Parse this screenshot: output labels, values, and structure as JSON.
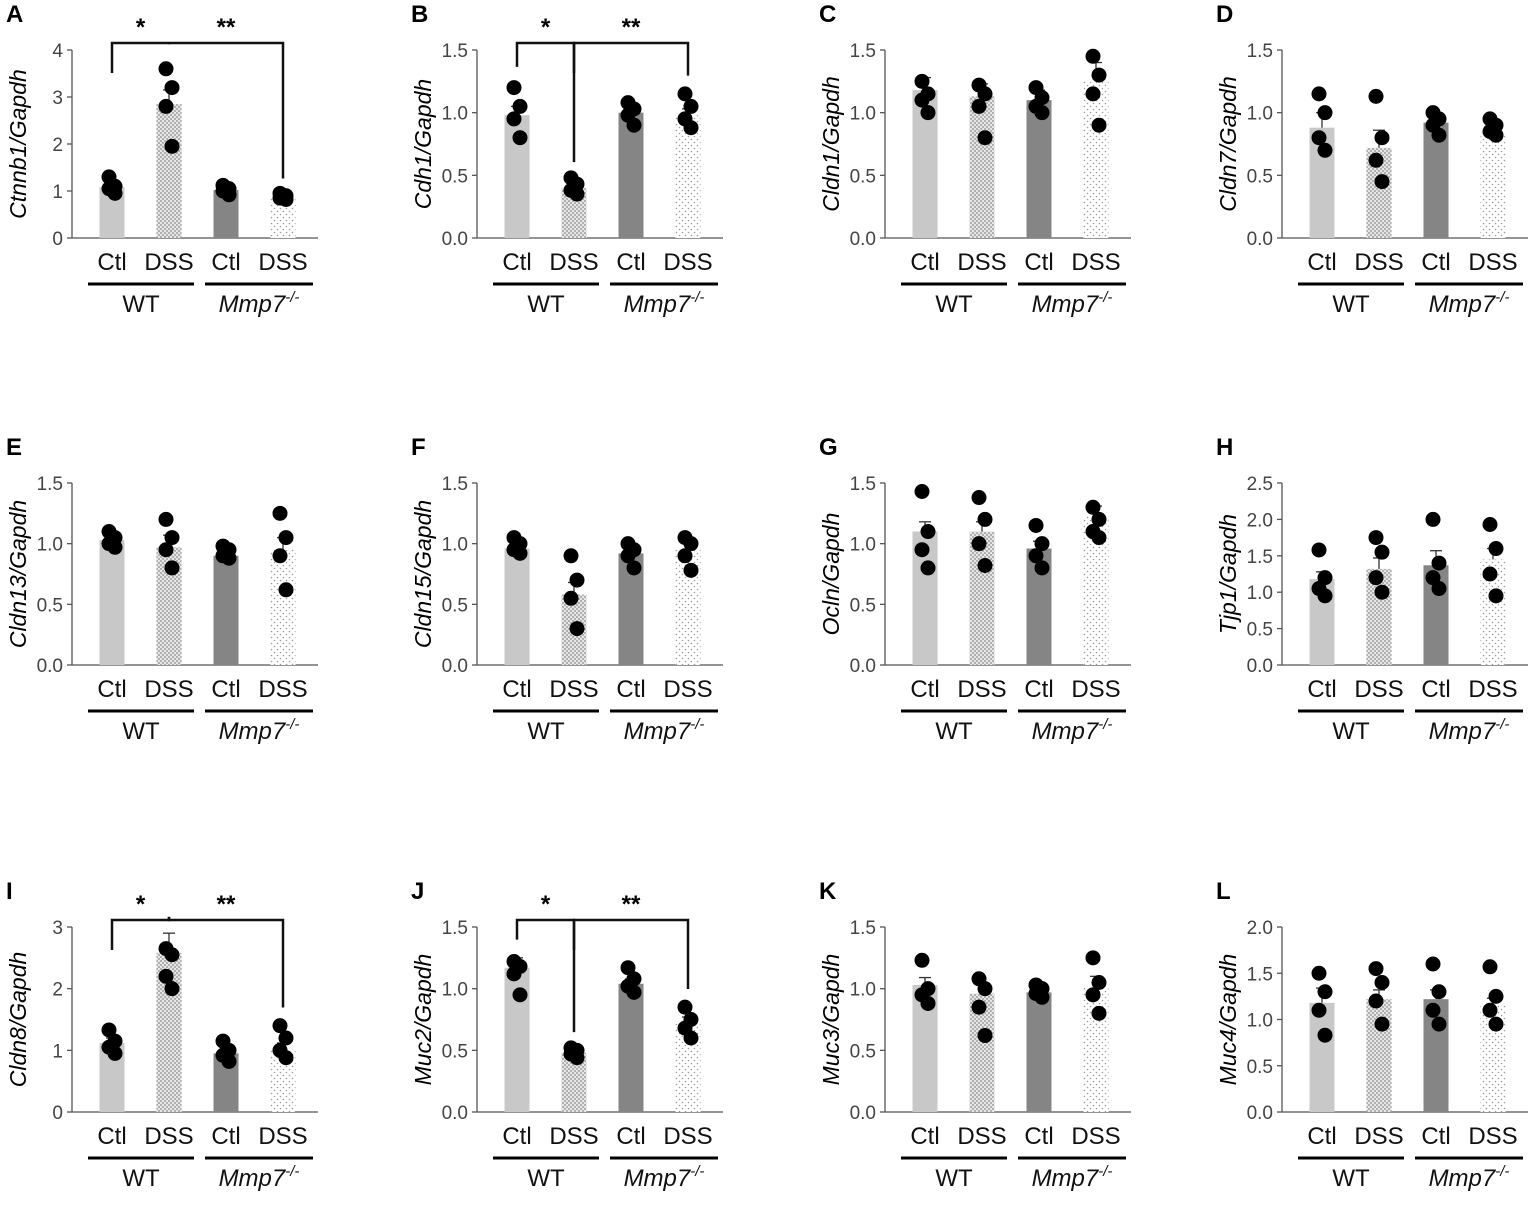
{
  "figure": {
    "category_labels": [
      "Ctl",
      "DSS",
      "Ctl",
      "DSS"
    ],
    "group_labels": [
      "WT",
      "Mmp7",
      "-/-"
    ],
    "bar_colors": [
      "#c8c8c8",
      "#a6a6a6",
      "#858585",
      "#d8d8d8"
    ]
  },
  "chart_data": [
    {
      "panel": "A",
      "type": "bar",
      "ylabel": "Ctnnb1/Gapdh",
      "ylim": [
        0,
        4
      ],
      "ticks": [
        "0",
        "1",
        "2",
        "3",
        "4"
      ],
      "values": [
        1.08,
        2.85,
        1.02,
        0.88
      ],
      "errors": [
        0.1,
        0.3,
        0.06,
        0.06
      ],
      "points": [
        [
          1.3,
          1.1,
          1.05,
          0.95
        ],
        [
          3.6,
          3.2,
          2.8,
          1.95
        ],
        [
          1.12,
          1.05,
          1.0,
          0.92
        ],
        [
          0.95,
          0.9,
          0.85,
          0.82
        ]
      ],
      "significance": [
        {
          "from": 0,
          "to": 1,
          "label": "*"
        },
        {
          "from": 1,
          "to": 3,
          "label": "**"
        }
      ]
    },
    {
      "panel": "B",
      "type": "bar",
      "ylabel": "Cdh1/Gapdh",
      "ylim": [
        0,
        1.5
      ],
      "ticks": [
        "0.0",
        "0.5",
        "1.0",
        "1.5"
      ],
      "values": [
        0.98,
        0.4,
        1.0,
        0.98
      ],
      "errors": [
        0.07,
        0.03,
        0.05,
        0.05
      ],
      "points": [
        [
          1.2,
          1.05,
          0.95,
          0.8
        ],
        [
          0.48,
          0.43,
          0.38,
          0.35
        ],
        [
          1.08,
          1.03,
          0.98,
          0.9
        ],
        [
          1.15,
          1.05,
          0.95,
          0.88
        ]
      ],
      "significance": [
        {
          "from": 0,
          "to": 1,
          "label": "*"
        },
        {
          "from": 1,
          "to": 3,
          "label": "**"
        }
      ]
    },
    {
      "panel": "C",
      "type": "bar",
      "ylabel": "Cldn1/Gapdh",
      "ylim": [
        0,
        1.5
      ],
      "ticks": [
        "0.0",
        "0.5",
        "1.0",
        "1.5"
      ],
      "values": [
        1.18,
        1.13,
        1.1,
        1.25
      ],
      "errors": [
        0.1,
        0.1,
        0.08,
        0.15
      ],
      "points": [
        [
          1.25,
          1.15,
          1.1,
          1.0
        ],
        [
          1.22,
          1.15,
          1.05,
          0.8
        ],
        [
          1.2,
          1.12,
          1.05,
          1.0
        ],
        [
          1.45,
          1.3,
          1.15,
          0.9
        ]
      ],
      "significance": []
    },
    {
      "panel": "D",
      "type": "bar",
      "ylabel": "Cldn7/Gapdh",
      "ylim": [
        0,
        1.5
      ],
      "ticks": [
        "0.0",
        "0.5",
        "1.0",
        "1.5"
      ],
      "values": [
        0.88,
        0.72,
        0.92,
        0.85
      ],
      "errors": [
        0.12,
        0.14,
        0.06,
        0.04
      ],
      "points": [
        [
          1.15,
          1.0,
          0.8,
          0.7
        ],
        [
          1.13,
          0.8,
          0.62,
          0.45
        ],
        [
          1.0,
          0.95,
          0.9,
          0.82
        ],
        [
          0.95,
          0.9,
          0.85,
          0.82
        ]
      ],
      "significance": []
    },
    {
      "panel": "E",
      "type": "bar",
      "ylabel": "Cldn13/Gapdh",
      "ylim": [
        0,
        1.5
      ],
      "ticks": [
        "0.0",
        "0.5",
        "1.0",
        "1.5"
      ],
      "values": [
        1.03,
        0.97,
        0.9,
        0.95
      ],
      "errors": [
        0.04,
        0.1,
        0.04,
        0.1
      ],
      "points": [
        [
          1.1,
          1.05,
          1.0,
          0.97
        ],
        [
          1.2,
          1.05,
          0.95,
          0.8
        ],
        [
          0.98,
          0.95,
          0.9,
          0.88
        ],
        [
          1.25,
          1.05,
          0.9,
          0.62
        ]
      ],
      "significance": []
    },
    {
      "panel": "F",
      "type": "bar",
      "ylabel": "Cldn15/Gapdh",
      "ylim": [
        0,
        1.5
      ],
      "ticks": [
        "0.0",
        "0.5",
        "1.0",
        "1.5"
      ],
      "values": [
        0.96,
        0.58,
        0.92,
        0.95
      ],
      "errors": [
        0.04,
        0.1,
        0.05,
        0.06
      ],
      "points": [
        [
          1.05,
          1.0,
          0.95,
          0.92
        ],
        [
          0.9,
          0.7,
          0.55,
          0.3
        ],
        [
          1.0,
          0.95,
          0.9,
          0.8
        ],
        [
          1.05,
          1.0,
          0.9,
          0.78
        ]
      ],
      "significance": []
    },
    {
      "panel": "G",
      "type": "bar",
      "ylabel": "Ocln/Gapdh",
      "ylim": [
        0,
        1.5
      ],
      "ticks": [
        "0.0",
        "0.5",
        "1.0",
        "1.5"
      ],
      "values": [
        1.1,
        1.1,
        0.96,
        1.23
      ],
      "errors": [
        0.08,
        0.08,
        0.06,
        0.08
      ],
      "points": [
        [
          1.43,
          1.1,
          0.95,
          0.8
        ],
        [
          1.38,
          1.2,
          1.0,
          0.82
        ],
        [
          1.15,
          1.0,
          0.9,
          0.8
        ],
        [
          1.3,
          1.2,
          1.1,
          1.05
        ]
      ],
      "significance": []
    },
    {
      "panel": "H",
      "type": "bar",
      "ylabel": "Tjp1/Gapdh",
      "ylim": [
        0,
        2.5
      ],
      "ticks": [
        "0.0",
        "0.5",
        "1.0",
        "1.5",
        "2.0",
        "2.5"
      ],
      "values": [
        1.18,
        1.32,
        1.37,
        1.45
      ],
      "errors": [
        0.1,
        0.15,
        0.2,
        0.15
      ],
      "points": [
        [
          1.58,
          1.2,
          1.05,
          0.95
        ],
        [
          1.75,
          1.55,
          1.2,
          1.0
        ],
        [
          2.0,
          1.4,
          1.2,
          1.05
        ],
        [
          1.93,
          1.6,
          1.25,
          0.95
        ]
      ],
      "significance": []
    },
    {
      "panel": "I",
      "type": "bar",
      "ylabel": "Cldn8/Gapdh",
      "ylim": [
        0,
        3
      ],
      "ticks": [
        "0",
        "1",
        "2",
        "3"
      ],
      "values": [
        1.12,
        2.58,
        0.95,
        1.02
      ],
      "errors": [
        0.08,
        0.32,
        0.08,
        0.1
      ],
      "points": [
        [
          1.33,
          1.15,
          1.05,
          0.95
        ],
        [
          2.65,
          2.55,
          2.2,
          2.0
        ],
        [
          1.15,
          1.0,
          0.92,
          0.82
        ],
        [
          1.4,
          1.2,
          1.0,
          0.88
        ]
      ],
      "significance": [
        {
          "from": 0,
          "to": 1,
          "label": "*"
        },
        {
          "from": 1,
          "to": 3,
          "label": "**"
        }
      ]
    },
    {
      "panel": "J",
      "type": "bar",
      "ylabel": "Muc2/Gapdh",
      "ylim": [
        0,
        1.5
      ],
      "ticks": [
        "0.0",
        "0.5",
        "1.0",
        "1.5"
      ],
      "values": [
        1.17,
        0.48,
        1.04,
        0.72
      ],
      "errors": [
        0.08,
        0.03,
        0.04,
        0.05
      ],
      "points": [
        [
          1.22,
          1.18,
          1.12,
          0.95
        ],
        [
          0.52,
          0.5,
          0.47,
          0.44
        ],
        [
          1.17,
          1.08,
          1.02,
          0.97
        ],
        [
          0.85,
          0.75,
          0.68,
          0.6
        ]
      ],
      "significance": [
        {
          "from": 0,
          "to": 1,
          "label": "*"
        },
        {
          "from": 1,
          "to": 3,
          "label": "**"
        }
      ]
    },
    {
      "panel": "K",
      "type": "bar",
      "ylabel": "Muc3/Gapdh",
      "ylim": [
        0,
        1.5
      ],
      "ticks": [
        "0.0",
        "0.5",
        "1.0",
        "1.5"
      ],
      "values": [
        1.03,
        0.96,
        0.97,
        1.02
      ],
      "errors": [
        0.06,
        0.08,
        0.03,
        0.08
      ],
      "points": [
        [
          1.23,
          1.0,
          0.95,
          0.88
        ],
        [
          1.08,
          1.0,
          0.85,
          0.62
        ],
        [
          1.03,
          1.0,
          0.96,
          0.93
        ],
        [
          1.25,
          1.05,
          0.95,
          0.8
        ]
      ],
      "significance": []
    },
    {
      "panel": "L",
      "type": "bar",
      "ylabel": "Muc4/Gapdh",
      "ylim": [
        0,
        2.0
      ],
      "ticks": [
        "0.0",
        "0.5",
        "1.0",
        "1.5",
        "2.0"
      ],
      "values": [
        1.18,
        1.22,
        1.22,
        1.15
      ],
      "errors": [
        0.16,
        0.1,
        0.1,
        0.08
      ],
      "points": [
        [
          1.5,
          1.3,
          1.1,
          0.83
        ],
        [
          1.55,
          1.4,
          1.2,
          0.95
        ],
        [
          1.6,
          1.3,
          1.1,
          0.95
        ],
        [
          1.57,
          1.25,
          1.1,
          0.95
        ]
      ],
      "significance": []
    }
  ]
}
